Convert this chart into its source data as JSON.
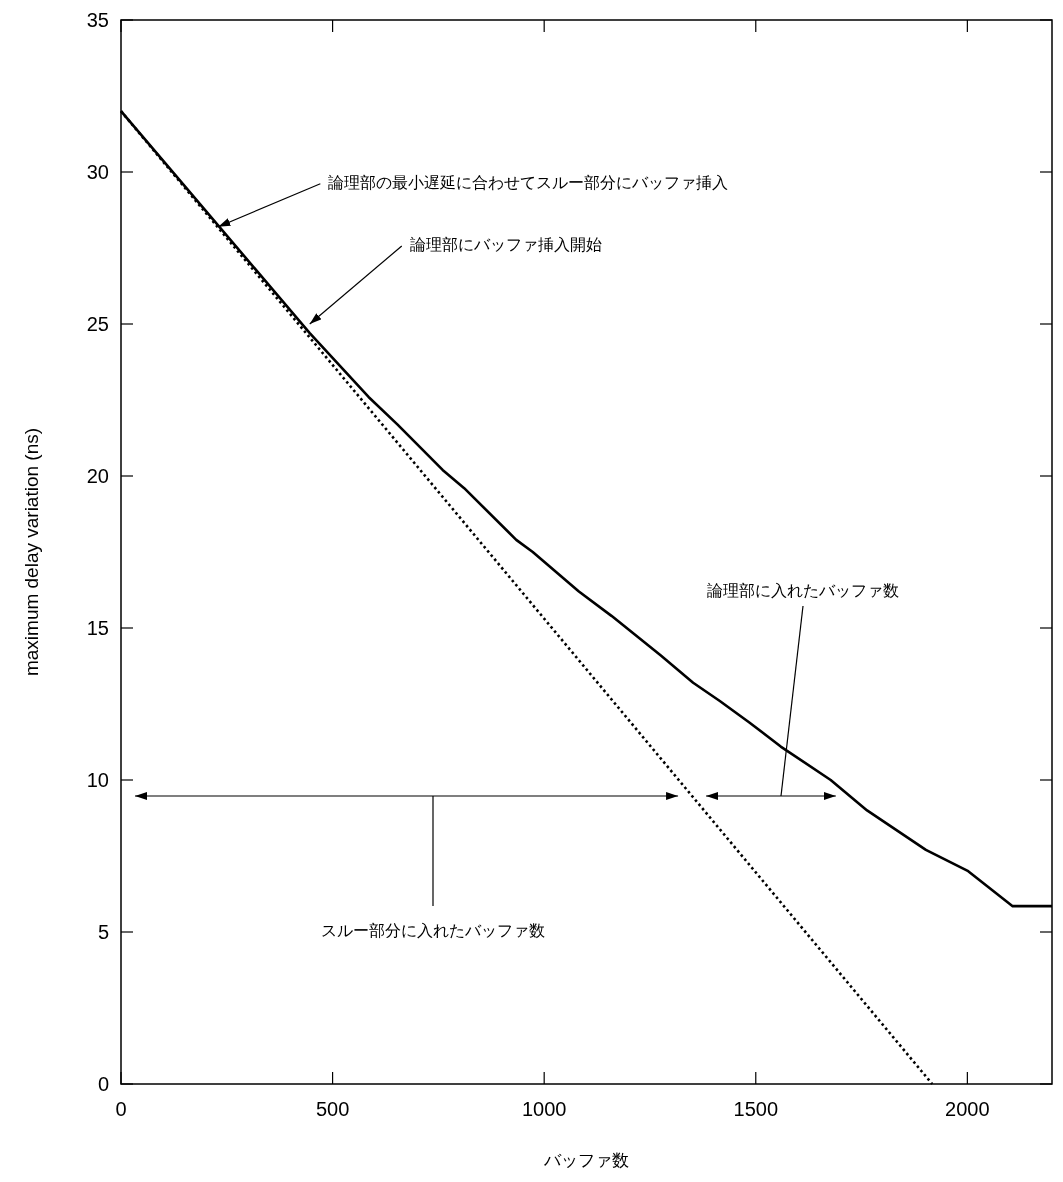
{
  "chart_data": {
    "type": "line",
    "xlabel": "バッファ数",
    "ylabel": "maximum delay variation (ns)",
    "xlim": [
      0,
      2200
    ],
    "ylim": [
      0,
      35
    ],
    "xticks": [
      0,
      500,
      1000,
      1500,
      2000
    ],
    "yticks": [
      0,
      5,
      10,
      15,
      20,
      25,
      30,
      35
    ],
    "grid": false,
    "marker": "none",
    "series": [
      {
        "color": "#000000",
        "line_style": "solid",
        "x": [
          0,
          446,
          585,
          653,
          760,
          811,
          934,
          973,
          1082,
          1159,
          1275,
          1352,
          1415,
          1484,
          1559,
          1677,
          1763,
          1902,
          2002,
          2107,
          2200
        ],
        "values": [
          32,
          24.7,
          22.6,
          21.7,
          20.2,
          19.6,
          17.9,
          17.5,
          16.2,
          15.4,
          14.1,
          13.2,
          12.6,
          11.9,
          11.1,
          10.0,
          9.0,
          7.7,
          7.0,
          5.85,
          5.85
        ]
      },
      {
        "color": "#000000",
        "line_style": "dotted",
        "x": [
          0,
          1917
        ],
        "values": [
          32,
          0
        ]
      }
    ],
    "annotations": [
      {
        "text": "論理部の最小遅延に合わせてスルー部分にバッファ挿入",
        "x": 230,
        "y": 28.2
      },
      {
        "text": "論理部にバッファ挿入開始",
        "x": 446,
        "y": 25.0
      },
      "論理部に入れたバッファ数",
      "スルー部分に入れたバッファ数"
    ]
  }
}
